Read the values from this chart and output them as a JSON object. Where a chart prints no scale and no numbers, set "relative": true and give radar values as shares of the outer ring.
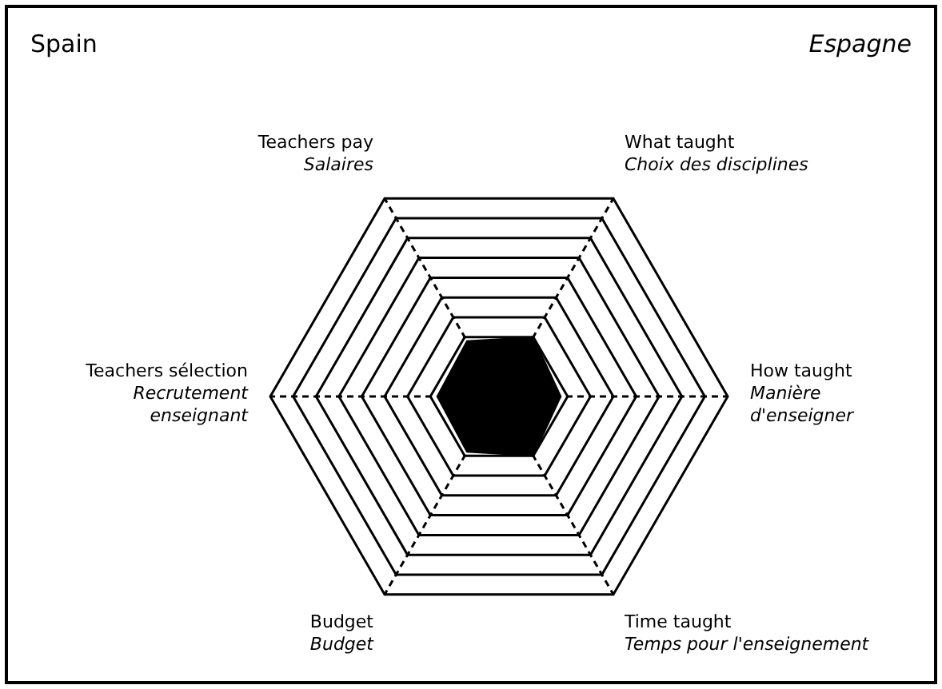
{
  "chart_data": {
    "type": "radar",
    "title": "Spain",
    "subtitle": "Espagne",
    "categories": [
      "What taught\nChoix des disciplines",
      "How taught\nManière\nd'enseigner",
      "Time taught\nTemps pour l'enseignement",
      "Budget\nBudget",
      "Teachers sélection\nRecrutement\nenseignant",
      "Teachers pay\nSalaires"
    ],
    "relative": true,
    "grid": true,
    "legend": false,
    "line_style": "dashed",
    "marker": "none",
    "series": [
      {
        "color": "#000000",
        "values": [
          0.3,
          0.27,
          0.3,
          0.28,
          0.27,
          0.28
        ]
      }
    ]
  }
}
